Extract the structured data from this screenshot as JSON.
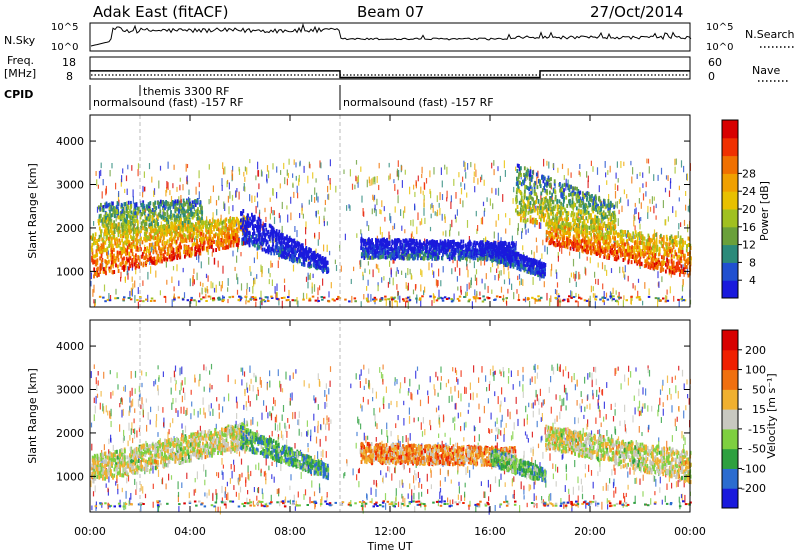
{
  "header": {
    "station": "Adak East (fitACF)",
    "beam": "Beam 07",
    "date": "27/Oct/2014"
  },
  "summary_panels": {
    "nsky_label": "N.Sky",
    "nsky_ticks": [
      "10^5",
      "10^0"
    ],
    "nsearch_label": "N.Search",
    "nsearch_ticks": [
      "10^5",
      "10^0"
    ],
    "freq_label": "Freq.",
    "freq_unit": "[MHz]",
    "freq_ticks": [
      "18",
      "8"
    ],
    "nave_label": "Nave",
    "nave_ticks": [
      "60",
      "0"
    ],
    "cpid_label": "CPID",
    "cpid_segments": [
      {
        "label": "normalsound (fast) -157 RF",
        "start_h": 0,
        "end_h": 10
      },
      {
        "label": "themis 3300 RF",
        "start_h": 2,
        "end_h": 10
      },
      {
        "label": "normalsound (fast) -157 RF",
        "start_h": 10,
        "end_h": 24
      }
    ],
    "freq_steps": [
      {
        "start_h": 0,
        "end_h": 10,
        "value": 13.5
      },
      {
        "start_h": 10,
        "end_h": 18,
        "value": 10.5
      },
      {
        "start_h": 18,
        "end_h": 24,
        "value": 13.5
      }
    ]
  },
  "chart_data": [
    {
      "type": "heatmap",
      "name": "power",
      "ylabel": "Slant Range [km]",
      "ylim": [
        180,
        4600
      ],
      "y_ticks": [
        "1000",
        "2000",
        "3000",
        "4000"
      ],
      "colorbar_label": "Power [dB]",
      "colorbar_ticks": [
        "4",
        "8",
        "12",
        "16",
        "20",
        "24",
        "28"
      ],
      "colorbar_colors": [
        "#1a1adc",
        "#2050d0",
        "#2b8a7a",
        "#6aa03a",
        "#a0c020",
        "#e8c000",
        "#f0a000",
        "#f07000",
        "#f03000",
        "#d80000"
      ],
      "regions": [
        {
          "t0": 0.0,
          "t1": 6.3,
          "r_low0": 900,
          "r_low1": 1700,
          "r_high0": 1900,
          "r_high1": 2300,
          "level": 0.85
        },
        {
          "t0": 0.3,
          "t1": 4.5,
          "r_low0": 1900,
          "r_low1": 2000,
          "r_high0": 2600,
          "r_high1": 2700,
          "level": 0.55
        },
        {
          "t0": 6.0,
          "t1": 9.5,
          "r_low0": 1700,
          "r_low1": 1000,
          "r_high0": 2500,
          "r_high1": 1300,
          "level": 0.15
        },
        {
          "t0": 10.8,
          "t1": 17.0,
          "r_low0": 1350,
          "r_low1": 1300,
          "r_high0": 1800,
          "r_high1": 1700,
          "level": 0.2
        },
        {
          "t0": 16.0,
          "t1": 18.2,
          "r_low0": 1300,
          "r_low1": 900,
          "r_high0": 1700,
          "r_high1": 1200,
          "level": 0.18
        },
        {
          "t0": 18.2,
          "t1": 24.0,
          "r_low0": 1700,
          "r_low1": 900,
          "r_high0": 2200,
          "r_high1": 1800,
          "level": 0.85
        },
        {
          "t0": 17.0,
          "t1": 21.0,
          "r_low0": 2200,
          "r_low1": 2000,
          "r_high0": 3500,
          "r_high1": 2600,
          "level": 0.55
        }
      ]
    },
    {
      "type": "heatmap",
      "name": "velocity",
      "ylabel": "Slant Range [km]",
      "ylim": [
        180,
        4600
      ],
      "xlabel": "Time UT",
      "x_ticks": [
        "00:00",
        "04:00",
        "08:00",
        "12:00",
        "16:00",
        "20:00",
        "00:00"
      ],
      "y_ticks": [
        "1000",
        "2000",
        "3000",
        "4000"
      ],
      "colorbar_label": "Velocity [m s⁻¹]",
      "colorbar_ticks": [
        "200",
        "100",
        "50",
        "15",
        "-15",
        "-50",
        "-100",
        "-200"
      ],
      "colorbar_colors": [
        "#1a1adc",
        "#2b6cd0",
        "#2ea040",
        "#7ed040",
        "#c8c8c0",
        "#f0b030",
        "#f07010",
        "#f02000",
        "#d80000"
      ],
      "regions": [
        {
          "t0": 0.0,
          "t1": 6.3,
          "r_low0": 900,
          "r_low1": 1700,
          "r_high0": 1500,
          "r_high1": 2300,
          "level": 0.5
        },
        {
          "t0": 6.0,
          "t1": 9.5,
          "r_low0": 1700,
          "r_low1": 1000,
          "r_high0": 2200,
          "r_high1": 1300,
          "level": 0.28
        },
        {
          "t0": 10.8,
          "t1": 17.0,
          "r_low0": 1350,
          "r_low1": 1300,
          "r_high0": 1800,
          "r_high1": 1700,
          "level": 0.66
        },
        {
          "t0": 16.0,
          "t1": 18.2,
          "r_low0": 1300,
          "r_low1": 900,
          "r_high0": 1700,
          "r_high1": 1200,
          "level": 0.34
        },
        {
          "t0": 18.2,
          "t1": 24.0,
          "r_low0": 1700,
          "r_low1": 900,
          "r_high0": 2200,
          "r_high1": 1600,
          "level": 0.5
        }
      ]
    }
  ]
}
